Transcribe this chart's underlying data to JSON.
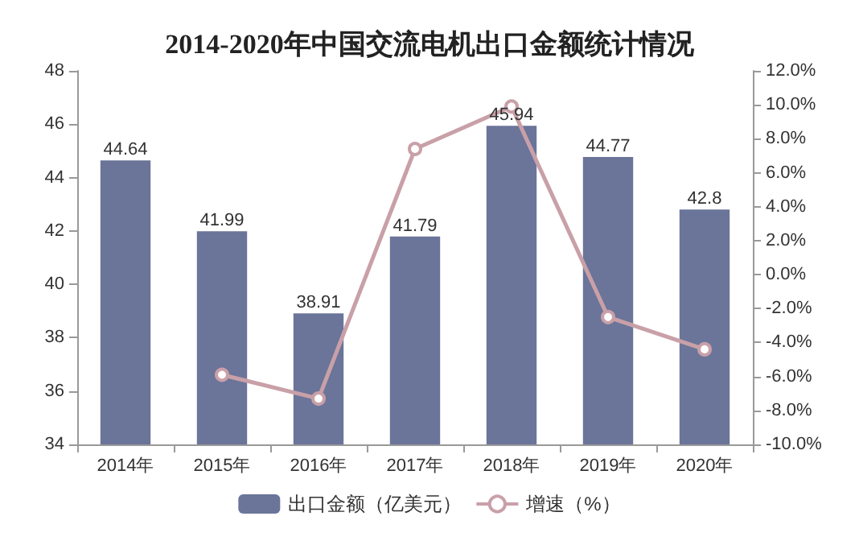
{
  "chart_data": {
    "type": "bar",
    "title": "2014-2020年中国交流电机出口金额统计情况",
    "categories": [
      "2014年",
      "2015年",
      "2016年",
      "2017年",
      "2018年",
      "2019年",
      "2020年"
    ],
    "series": [
      {
        "name": "出口金额（亿美元）",
        "color": "#6b7499",
        "values": [
          44.64,
          41.99,
          38.91,
          41.79,
          45.94,
          44.77,
          42.8
        ],
        "value_labels": [
          "44.64",
          "41.99",
          "38.91",
          "41.79",
          "45.94",
          "44.77",
          "42.8"
        ]
      },
      {
        "name": "增速（%）",
        "type": "line",
        "axis": "y2",
        "color": "#c9a0a8",
        "marker": "circle",
        "values": [
          null,
          -5.9,
          -7.3,
          7.4,
          9.9,
          -2.5,
          -4.4
        ]
      }
    ],
    "ylim": [
      34,
      48
    ],
    "yticks": [
      34,
      36,
      38,
      40,
      42,
      44,
      46,
      48
    ],
    "y2lim": [
      -10,
      12
    ],
    "y2ticks": [
      {
        "value": -10,
        "label": "-10.0%"
      },
      {
        "value": -8,
        "label": "-8.0%"
      },
      {
        "value": -6,
        "label": "-6.0%"
      },
      {
        "value": -4,
        "label": "-4.0%"
      },
      {
        "value": -2,
        "label": "-2.0%"
      },
      {
        "value": 0,
        "label": "0.0%"
      },
      {
        "value": 2,
        "label": "2.0%"
      },
      {
        "value": 4,
        "label": "4.0%"
      },
      {
        "value": 6,
        "label": "6.0%"
      },
      {
        "value": 8,
        "label": "8.0%"
      },
      {
        "value": 10,
        "label": "10.0%"
      },
      {
        "value": 12,
        "label": "12.0%"
      }
    ],
    "legend": "bottom",
    "grid": false
  }
}
